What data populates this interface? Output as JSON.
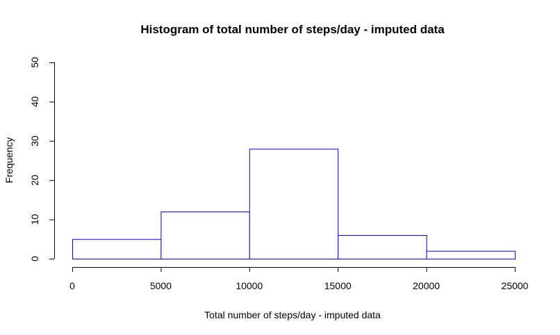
{
  "chart_data": {
    "type": "bar",
    "subtype": "histogram",
    "title": "Histogram of total number of steps/day - imputed data",
    "xlabel": "Total number of steps/day - imputed data",
    "ylabel": "Frequency",
    "bins": [
      {
        "from": 0,
        "to": 5000,
        "count": 5
      },
      {
        "from": 5000,
        "to": 10000,
        "count": 12
      },
      {
        "from": 10000,
        "to": 15000,
        "count": 28
      },
      {
        "from": 15000,
        "to": 20000,
        "count": 6
      },
      {
        "from": 20000,
        "to": 25000,
        "count": 2
      }
    ],
    "xlim": [
      0,
      25000
    ],
    "ylim": [
      0,
      50
    ],
    "x_ticks": [
      0,
      5000,
      10000,
      15000,
      20000,
      25000
    ],
    "y_ticks": [
      0,
      10,
      20,
      30,
      40,
      50
    ],
    "bar_fill": "#ffffff",
    "bar_border_color": "#0000cd",
    "grid": false,
    "legend": "none"
  }
}
